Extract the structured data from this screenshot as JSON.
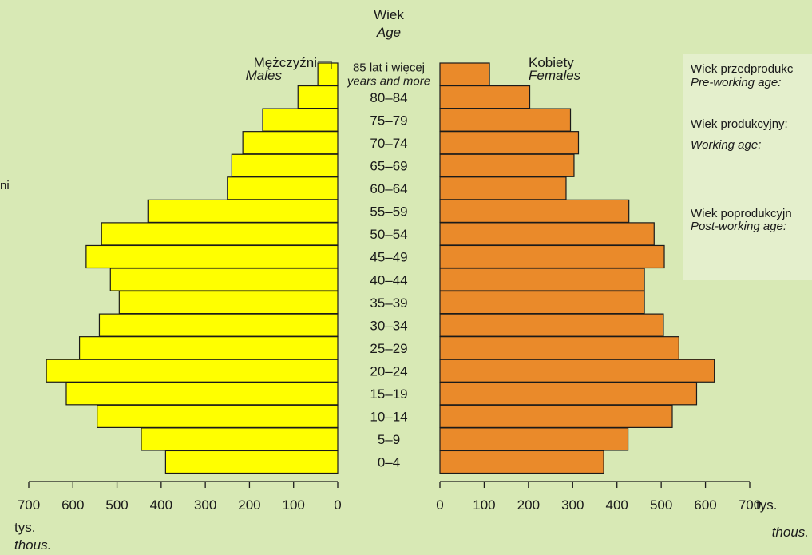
{
  "chart_data": {
    "type": "bar",
    "orientation": "horizontal",
    "layout": "population-pyramid",
    "title": "Wiek",
    "title_en": "Age",
    "categories": [
      "0–4",
      "5–9",
      "10–14",
      "15–19",
      "20–24",
      "25–29",
      "30–34",
      "35–39",
      "40–44",
      "45–49",
      "50–54",
      "55–59",
      "60–64",
      "65–69",
      "70–74",
      "75–79",
      "80–84",
      "85 lat i więcej"
    ],
    "top_category_en": "years and more",
    "series": [
      {
        "name": "Mężczyźni",
        "name_en": "Males",
        "color": "#ffff00",
        "values": [
          390,
          445,
          545,
          615,
          660,
          585,
          540,
          495,
          515,
          570,
          535,
          430,
          250,
          240,
          215,
          170,
          90,
          45
        ]
      },
      {
        "name": "Kobiety",
        "name_en": "Females",
        "color": "#ea8a2a",
        "values": [
          370,
          425,
          525,
          580,
          620,
          540,
          505,
          462,
          462,
          507,
          484,
          427,
          285,
          303,
          313,
          295,
          203,
          112
        ]
      }
    ],
    "xlim": [
      0,
      700
    ],
    "xticks": [
      0,
      100,
      200,
      300,
      400,
      500,
      600,
      700
    ],
    "xlabel": "tys.",
    "xlabel_en": "thous.",
    "grid": false
  },
  "legend_panel": {
    "lines": [
      {
        "text": "Wiek przedprodukc",
        "italic": false
      },
      {
        "text": "Pre-working age:",
        "italic": true
      },
      {
        "text": "Wiek produkcyjny:",
        "italic": false
      },
      {
        "text": "Working age:",
        "italic": true
      },
      {
        "text": "Wiek poprodukcyjn",
        "italic": false
      },
      {
        "text": "Post-working age:",
        "italic": true
      }
    ]
  },
  "edge_fragment": "ni",
  "colors": {
    "background": "#d8e9b5",
    "panel": "#e4efcc",
    "males": "#ffff00",
    "females": "#ea8a2a",
    "stroke": "#1a1a1a"
  }
}
